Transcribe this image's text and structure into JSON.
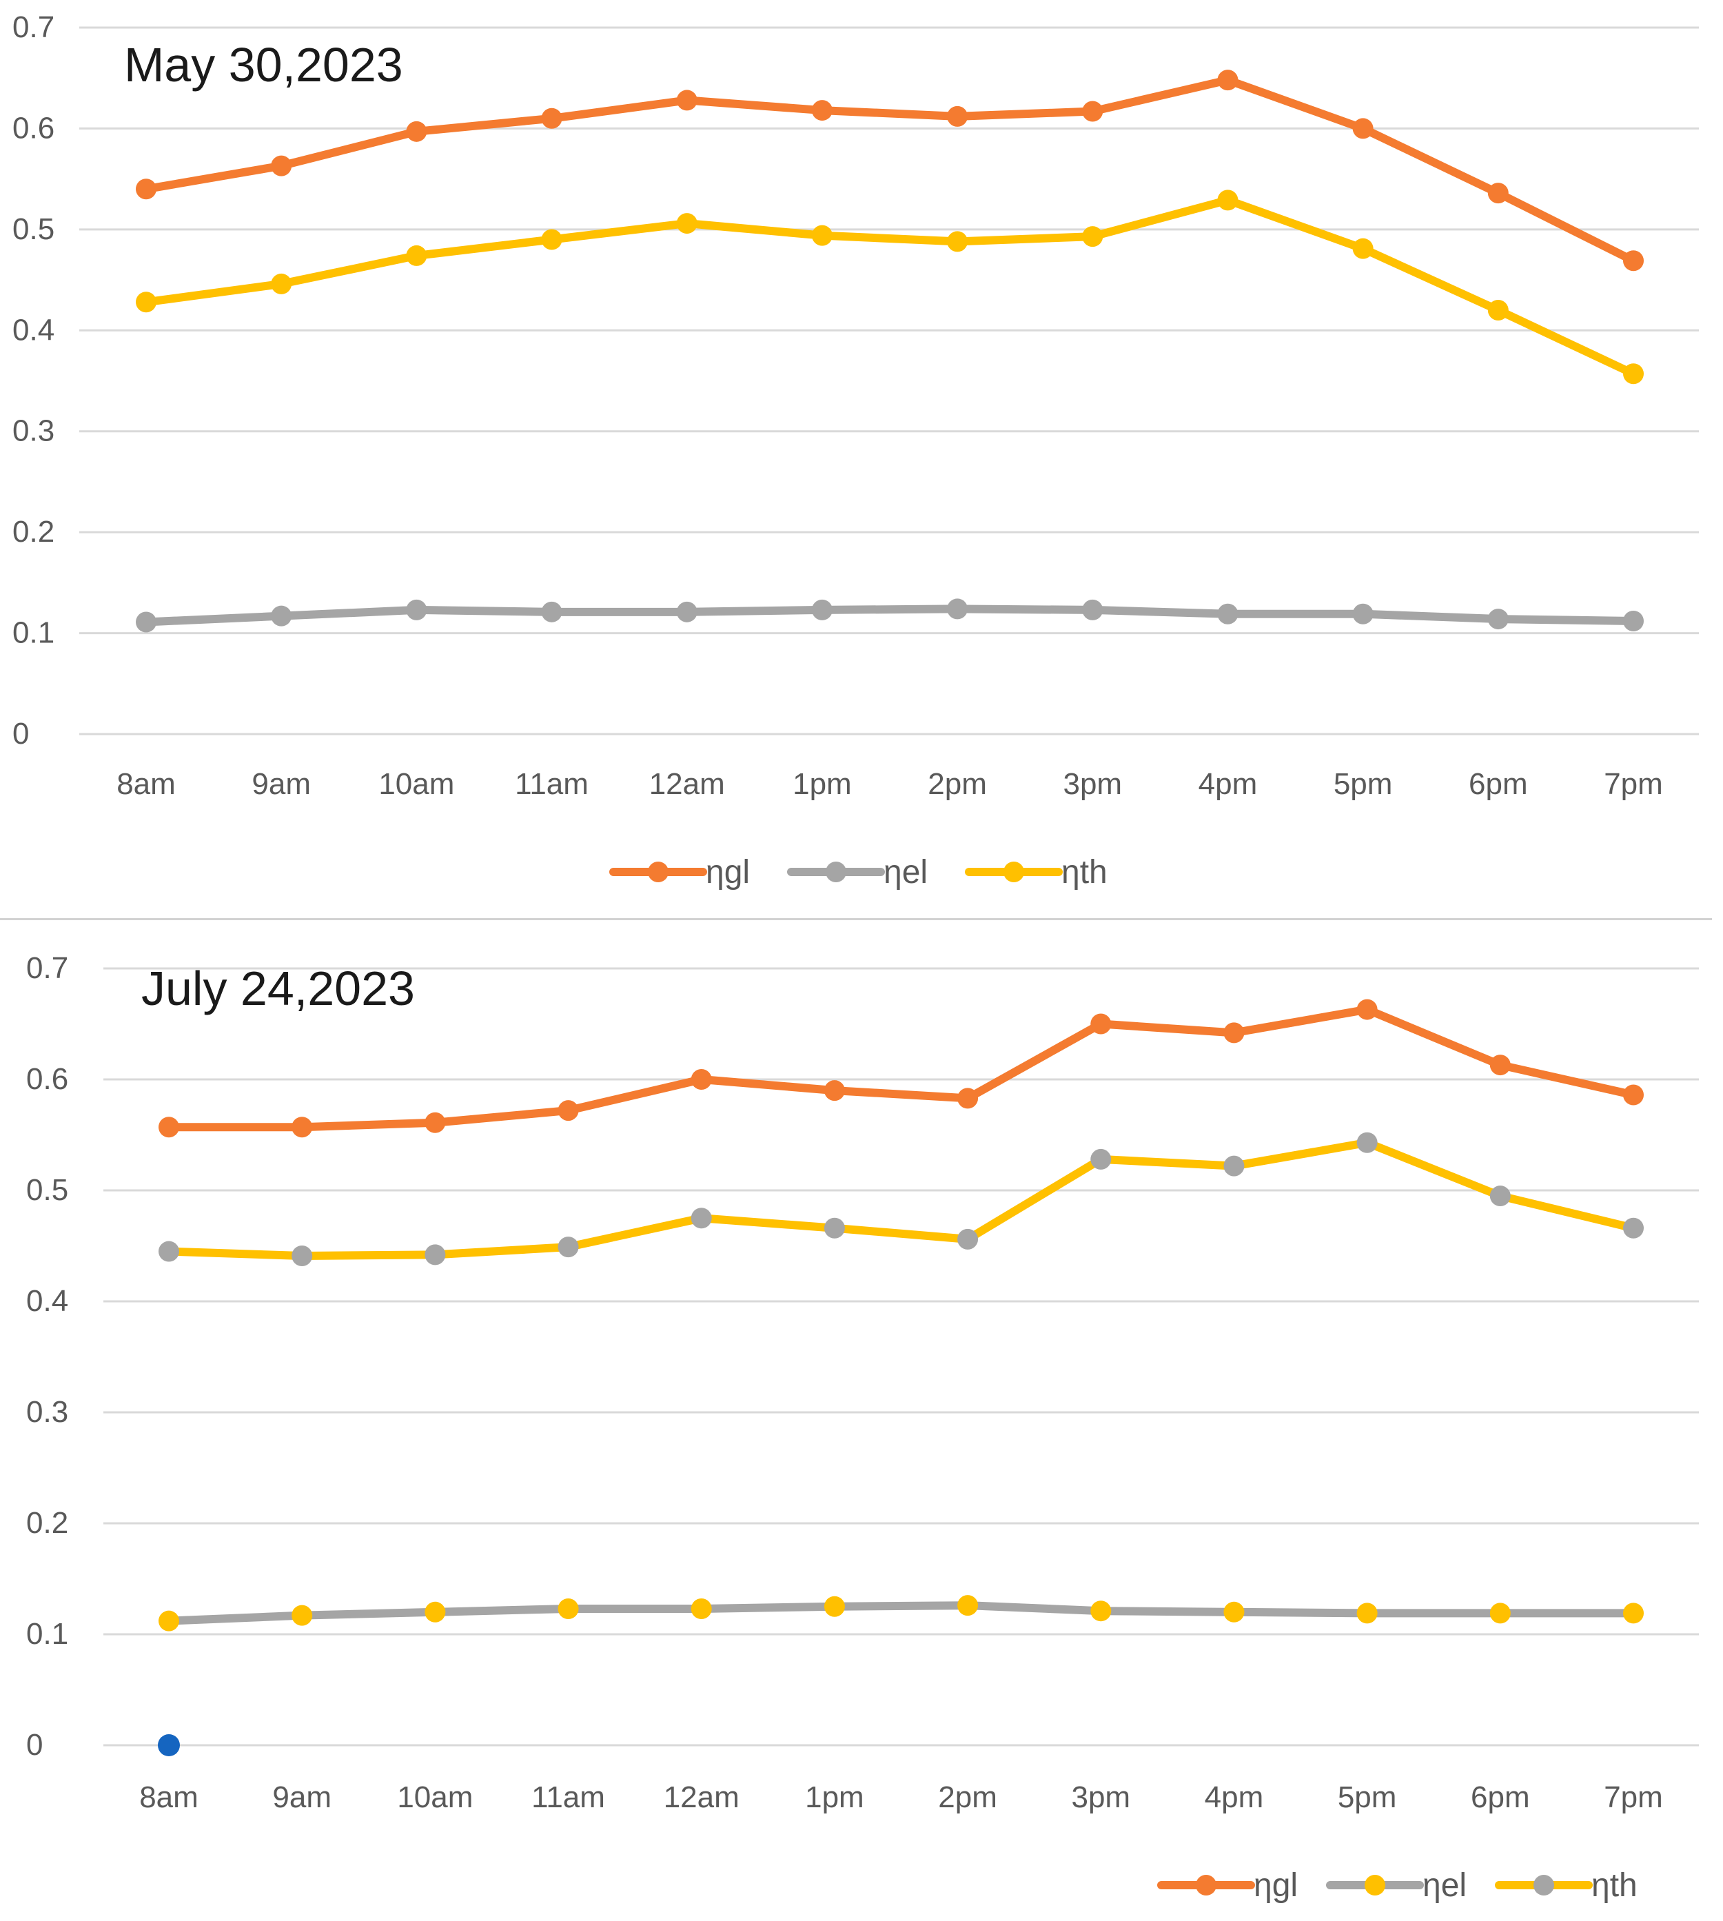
{
  "chart_data": [
    {
      "type": "line",
      "title": "May 30,2023",
      "categories": [
        "8am",
        "9am",
        "10am",
        "11am",
        "12am",
        "1pm",
        "2pm",
        "3pm",
        "4pm",
        "5pm",
        "6pm",
        "7pm"
      ],
      "yticks": [
        "0",
        "0.1",
        "0.2",
        "0.3",
        "0.4",
        "0.5",
        "0.6",
        "0.7"
      ],
      "ylim": [
        0,
        0.7
      ],
      "grid": true,
      "legend_position": "bottom",
      "series": [
        {
          "name": "ηgl",
          "line_color": "#f47b30",
          "marker_color": "#f47b30",
          "values": [
            0.54,
            0.563,
            0.597,
            0.61,
            0.628,
            0.618,
            0.612,
            0.617,
            0.648,
            0.6,
            0.536,
            0.469
          ]
        },
        {
          "name": "ηel",
          "line_color": "#a5a5a5",
          "marker_color": "#a5a5a5",
          "values": [
            0.111,
            0.117,
            0.123,
            0.121,
            0.121,
            0.123,
            0.124,
            0.123,
            0.119,
            0.119,
            0.114,
            0.112
          ]
        },
        {
          "name": "ηth",
          "line_color": "#ffc000",
          "marker_color": "#ffc000",
          "values": [
            0.428,
            0.446,
            0.474,
            0.49,
            0.506,
            0.494,
            0.488,
            0.493,
            0.529,
            0.481,
            0.42,
            0.357
          ]
        }
      ]
    },
    {
      "type": "line",
      "title": "July 24,2023",
      "categories": [
        "8am",
        "9am",
        "10am",
        "11am",
        "12am",
        "1pm",
        "2pm",
        "3pm",
        "4pm",
        "5pm",
        "6pm",
        "7pm"
      ],
      "yticks": [
        "0",
        "0.1",
        "0.2",
        "0.3",
        "0.4",
        "0.5",
        "0.6",
        "0.7"
      ],
      "ylim": [
        0,
        0.7
      ],
      "grid": true,
      "legend_position": "bottom-right",
      "series": [
        {
          "name": "ηgl",
          "line_color": "#f47b30",
          "marker_color": "#f47b30",
          "values": [
            0.557,
            0.557,
            0.561,
            0.572,
            0.6,
            0.59,
            0.583,
            0.65,
            0.642,
            0.663,
            0.613,
            0.586
          ]
        },
        {
          "name": "ηel",
          "line_color": "#a5a5a5",
          "marker_color": "#ffc000",
          "values": [
            0.112,
            0.117,
            0.12,
            0.123,
            0.123,
            0.125,
            0.126,
            0.121,
            0.12,
            0.119,
            0.119,
            0.119
          ]
        },
        {
          "name": "ηth",
          "line_color": "#ffc000",
          "marker_color": "#a5a5a5",
          "values": [
            0.445,
            0.441,
            0.442,
            0.449,
            0.475,
            0.466,
            0.456,
            0.528,
            0.522,
            0.543,
            0.495,
            0.466
          ]
        }
      ],
      "extra_points": [
        {
          "x": "8am",
          "y": 0,
          "color": "#1565c0"
        }
      ]
    }
  ]
}
